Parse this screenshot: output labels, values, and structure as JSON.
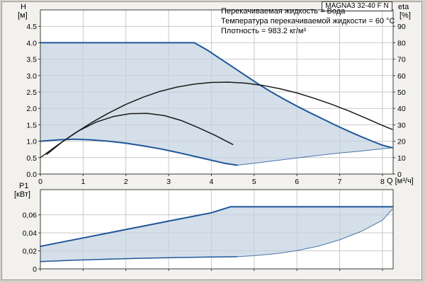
{
  "title_box": {
    "label": "MAGNA3 32-40 F N"
  },
  "annotations": {
    "line1": "Перекачиваемая жидкость = Вода",
    "line2": "Температура перекачиваемой жидкости = 60 °C",
    "line3": "Плотность = 983.2 кг/м³"
  },
  "colors": {
    "background": "#d4d0c8",
    "margin_bg": "#f2f1ee",
    "plot_bg": "#ffffff",
    "grid": "#c9c9c9",
    "frame": "#3c3c3c",
    "curve_blue": "#1f5699",
    "curve_black": "#1a1a1a",
    "envelope_fill": "#c3d2e0"
  },
  "chart_data": [
    {
      "type": "line",
      "name": "head-flow-chart",
      "title": "MAGNA3 32-40 F N",
      "xlabel": "Q [м³/ч]",
      "ylabel_line1": "H",
      "ylabel_line2": "[м]",
      "y2label_line1": "eta",
      "y2label_line2": "[%]",
      "xlim": [
        0,
        8.25
      ],
      "ylim": [
        0,
        5.0
      ],
      "y2lim": [
        0,
        100
      ],
      "grid": true,
      "xticks": [
        0,
        1,
        2,
        3,
        4,
        5,
        6,
        7,
        8
      ],
      "yticks": [
        {
          "v": 0.0,
          "label": "0.0"
        },
        {
          "v": 0.5,
          "label": "0.5"
        },
        {
          "v": 1.0,
          "label": "1.0"
        },
        {
          "v": 1.5,
          "label": "1.5"
        },
        {
          "v": 2.0,
          "label": "2.0"
        },
        {
          "v": 2.5,
          "label": "2.5"
        },
        {
          "v": 3.0,
          "label": "3.0"
        },
        {
          "v": 3.5,
          "label": "3.5"
        },
        {
          "v": 4.0,
          "label": "4.0"
        },
        {
          "v": 4.5,
          "label": "4.5"
        }
      ],
      "y2ticks": [
        0,
        10,
        20,
        30,
        40,
        50,
        60,
        70,
        80,
        90
      ],
      "series": [
        {
          "name": "max-head-curve",
          "role": "envelope-upper",
          "color": "#1f5699",
          "width": 2,
          "points": [
            [
              0,
              4.0
            ],
            [
              3.6,
              4.0
            ],
            [
              3.9,
              3.78
            ],
            [
              4.2,
              3.52
            ],
            [
              4.5,
              3.26
            ],
            [
              4.8,
              3.0
            ],
            [
              5.1,
              2.74
            ],
            [
              5.4,
              2.5
            ],
            [
              5.7,
              2.28
            ],
            [
              6.0,
              2.07
            ],
            [
              6.3,
              1.87
            ],
            [
              6.6,
              1.68
            ],
            [
              6.9,
              1.49
            ],
            [
              7.2,
              1.31
            ],
            [
              7.5,
              1.14
            ],
            [
              7.8,
              0.98
            ],
            [
              8.0,
              0.88
            ],
            [
              8.23,
              0.8
            ]
          ]
        },
        {
          "name": "min-head-curve",
          "role": "envelope-lower",
          "color": "#1f5699",
          "width": 2,
          "points": [
            [
              0,
              1.0
            ],
            [
              0.4,
              1.04
            ],
            [
              0.8,
              1.06
            ],
            [
              1.2,
              1.04
            ],
            [
              1.6,
              1.0
            ],
            [
              2.0,
              0.94
            ],
            [
              2.4,
              0.86
            ],
            [
              2.8,
              0.77
            ],
            [
              3.2,
              0.66
            ],
            [
              3.6,
              0.54
            ],
            [
              4.0,
              0.42
            ],
            [
              4.3,
              0.33
            ],
            [
              4.6,
              0.27
            ]
          ]
        },
        {
          "name": "envelope-right-boundary",
          "role": "envelope-lower",
          "color": "#1f5699",
          "width": 1,
          "opacity": 0.8,
          "points": [
            [
              4.6,
              0.27
            ],
            [
              5.0,
              0.33
            ],
            [
              5.5,
              0.41
            ],
            [
              6.0,
              0.49
            ],
            [
              6.5,
              0.57
            ],
            [
              7.0,
              0.64
            ],
            [
              7.5,
              0.7
            ],
            [
              8.0,
              0.77
            ],
            [
              8.23,
              0.8
            ]
          ]
        },
        {
          "name": "efficiency-curve-max",
          "role": "overlay",
          "color": "#1a1a1a",
          "width": 1.5,
          "points": [
            [
              0,
              0.5
            ],
            [
              0.4,
              0.88
            ],
            [
              0.8,
              1.24
            ],
            [
              1.2,
              1.57
            ],
            [
              1.6,
              1.86
            ],
            [
              2.0,
              2.12
            ],
            [
              2.4,
              2.34
            ],
            [
              2.8,
              2.52
            ],
            [
              3.2,
              2.65
            ],
            [
              3.6,
              2.74
            ],
            [
              4.0,
              2.79
            ],
            [
              4.4,
              2.8
            ],
            [
              4.8,
              2.77
            ],
            [
              5.2,
              2.7
            ],
            [
              5.6,
              2.6
            ],
            [
              6.0,
              2.47
            ],
            [
              6.4,
              2.31
            ],
            [
              6.8,
              2.13
            ],
            [
              7.2,
              1.93
            ],
            [
              7.6,
              1.71
            ],
            [
              8.0,
              1.48
            ],
            [
              8.23,
              1.36
            ]
          ]
        },
        {
          "name": "efficiency-curve-min",
          "role": "overlay",
          "color": "#1a1a1a",
          "width": 1.5,
          "points": [
            [
              0.15,
              0.6
            ],
            [
              0.5,
              0.97
            ],
            [
              0.9,
              1.32
            ],
            [
              1.3,
              1.58
            ],
            [
              1.7,
              1.75
            ],
            [
              2.1,
              1.84
            ],
            [
              2.5,
              1.85
            ],
            [
              2.9,
              1.78
            ],
            [
              3.3,
              1.63
            ],
            [
              3.7,
              1.41
            ],
            [
              4.1,
              1.17
            ],
            [
              4.5,
              0.9
            ]
          ]
        }
      ]
    },
    {
      "type": "line",
      "name": "power-flow-chart",
      "xlabel": "",
      "ylabel_line1": "P1",
      "ylabel_line2": "[кВт]",
      "xlim": [
        0,
        8.25
      ],
      "ylim": [
        0,
        0.088
      ],
      "grid": true,
      "xticks": [
        0,
        1,
        2,
        3,
        4,
        5,
        6,
        7,
        8
      ],
      "yticks": [
        {
          "v": 0,
          "label": "0"
        },
        {
          "v": 0.02,
          "label": "0,02"
        },
        {
          "v": 0.04,
          "label": "0,04"
        },
        {
          "v": 0.06,
          "label": "0,06"
        }
      ],
      "series": [
        {
          "name": "max-power-curve",
          "role": "envelope-upper",
          "color": "#1f5699",
          "width": 2,
          "points": [
            [
              0,
              0.025
            ],
            [
              0.5,
              0.0297
            ],
            [
              1.0,
              0.0343
            ],
            [
              1.5,
              0.039
            ],
            [
              2.0,
              0.0437
            ],
            [
              2.5,
              0.0483
            ],
            [
              3.0,
              0.053
            ],
            [
              3.5,
              0.0577
            ],
            [
              4.0,
              0.0623
            ],
            [
              4.45,
              0.069
            ],
            [
              8.23,
              0.069
            ]
          ]
        },
        {
          "name": "min-power-curve",
          "role": "envelope-lower",
          "color": "#1f5699",
          "width": 1.5,
          "points": [
            [
              0,
              0.008
            ],
            [
              0.8,
              0.0096
            ],
            [
              1.6,
              0.0108
            ],
            [
              2.4,
              0.0118
            ],
            [
              3.2,
              0.0126
            ],
            [
              4.0,
              0.0131
            ],
            [
              4.6,
              0.0134
            ]
          ]
        },
        {
          "name": "power-envelope-boundary",
          "role": "envelope-lower",
          "color": "#1f5699",
          "width": 1,
          "opacity": 0.8,
          "points": [
            [
              4.6,
              0.0134
            ],
            [
              5.0,
              0.0146
            ],
            [
              5.5,
              0.0168
            ],
            [
              6.0,
              0.0202
            ],
            [
              6.5,
              0.0252
            ],
            [
              7.0,
              0.0322
            ],
            [
              7.5,
              0.0415
            ],
            [
              8.0,
              0.054
            ],
            [
              8.23,
              0.066
            ]
          ]
        }
      ]
    }
  ]
}
